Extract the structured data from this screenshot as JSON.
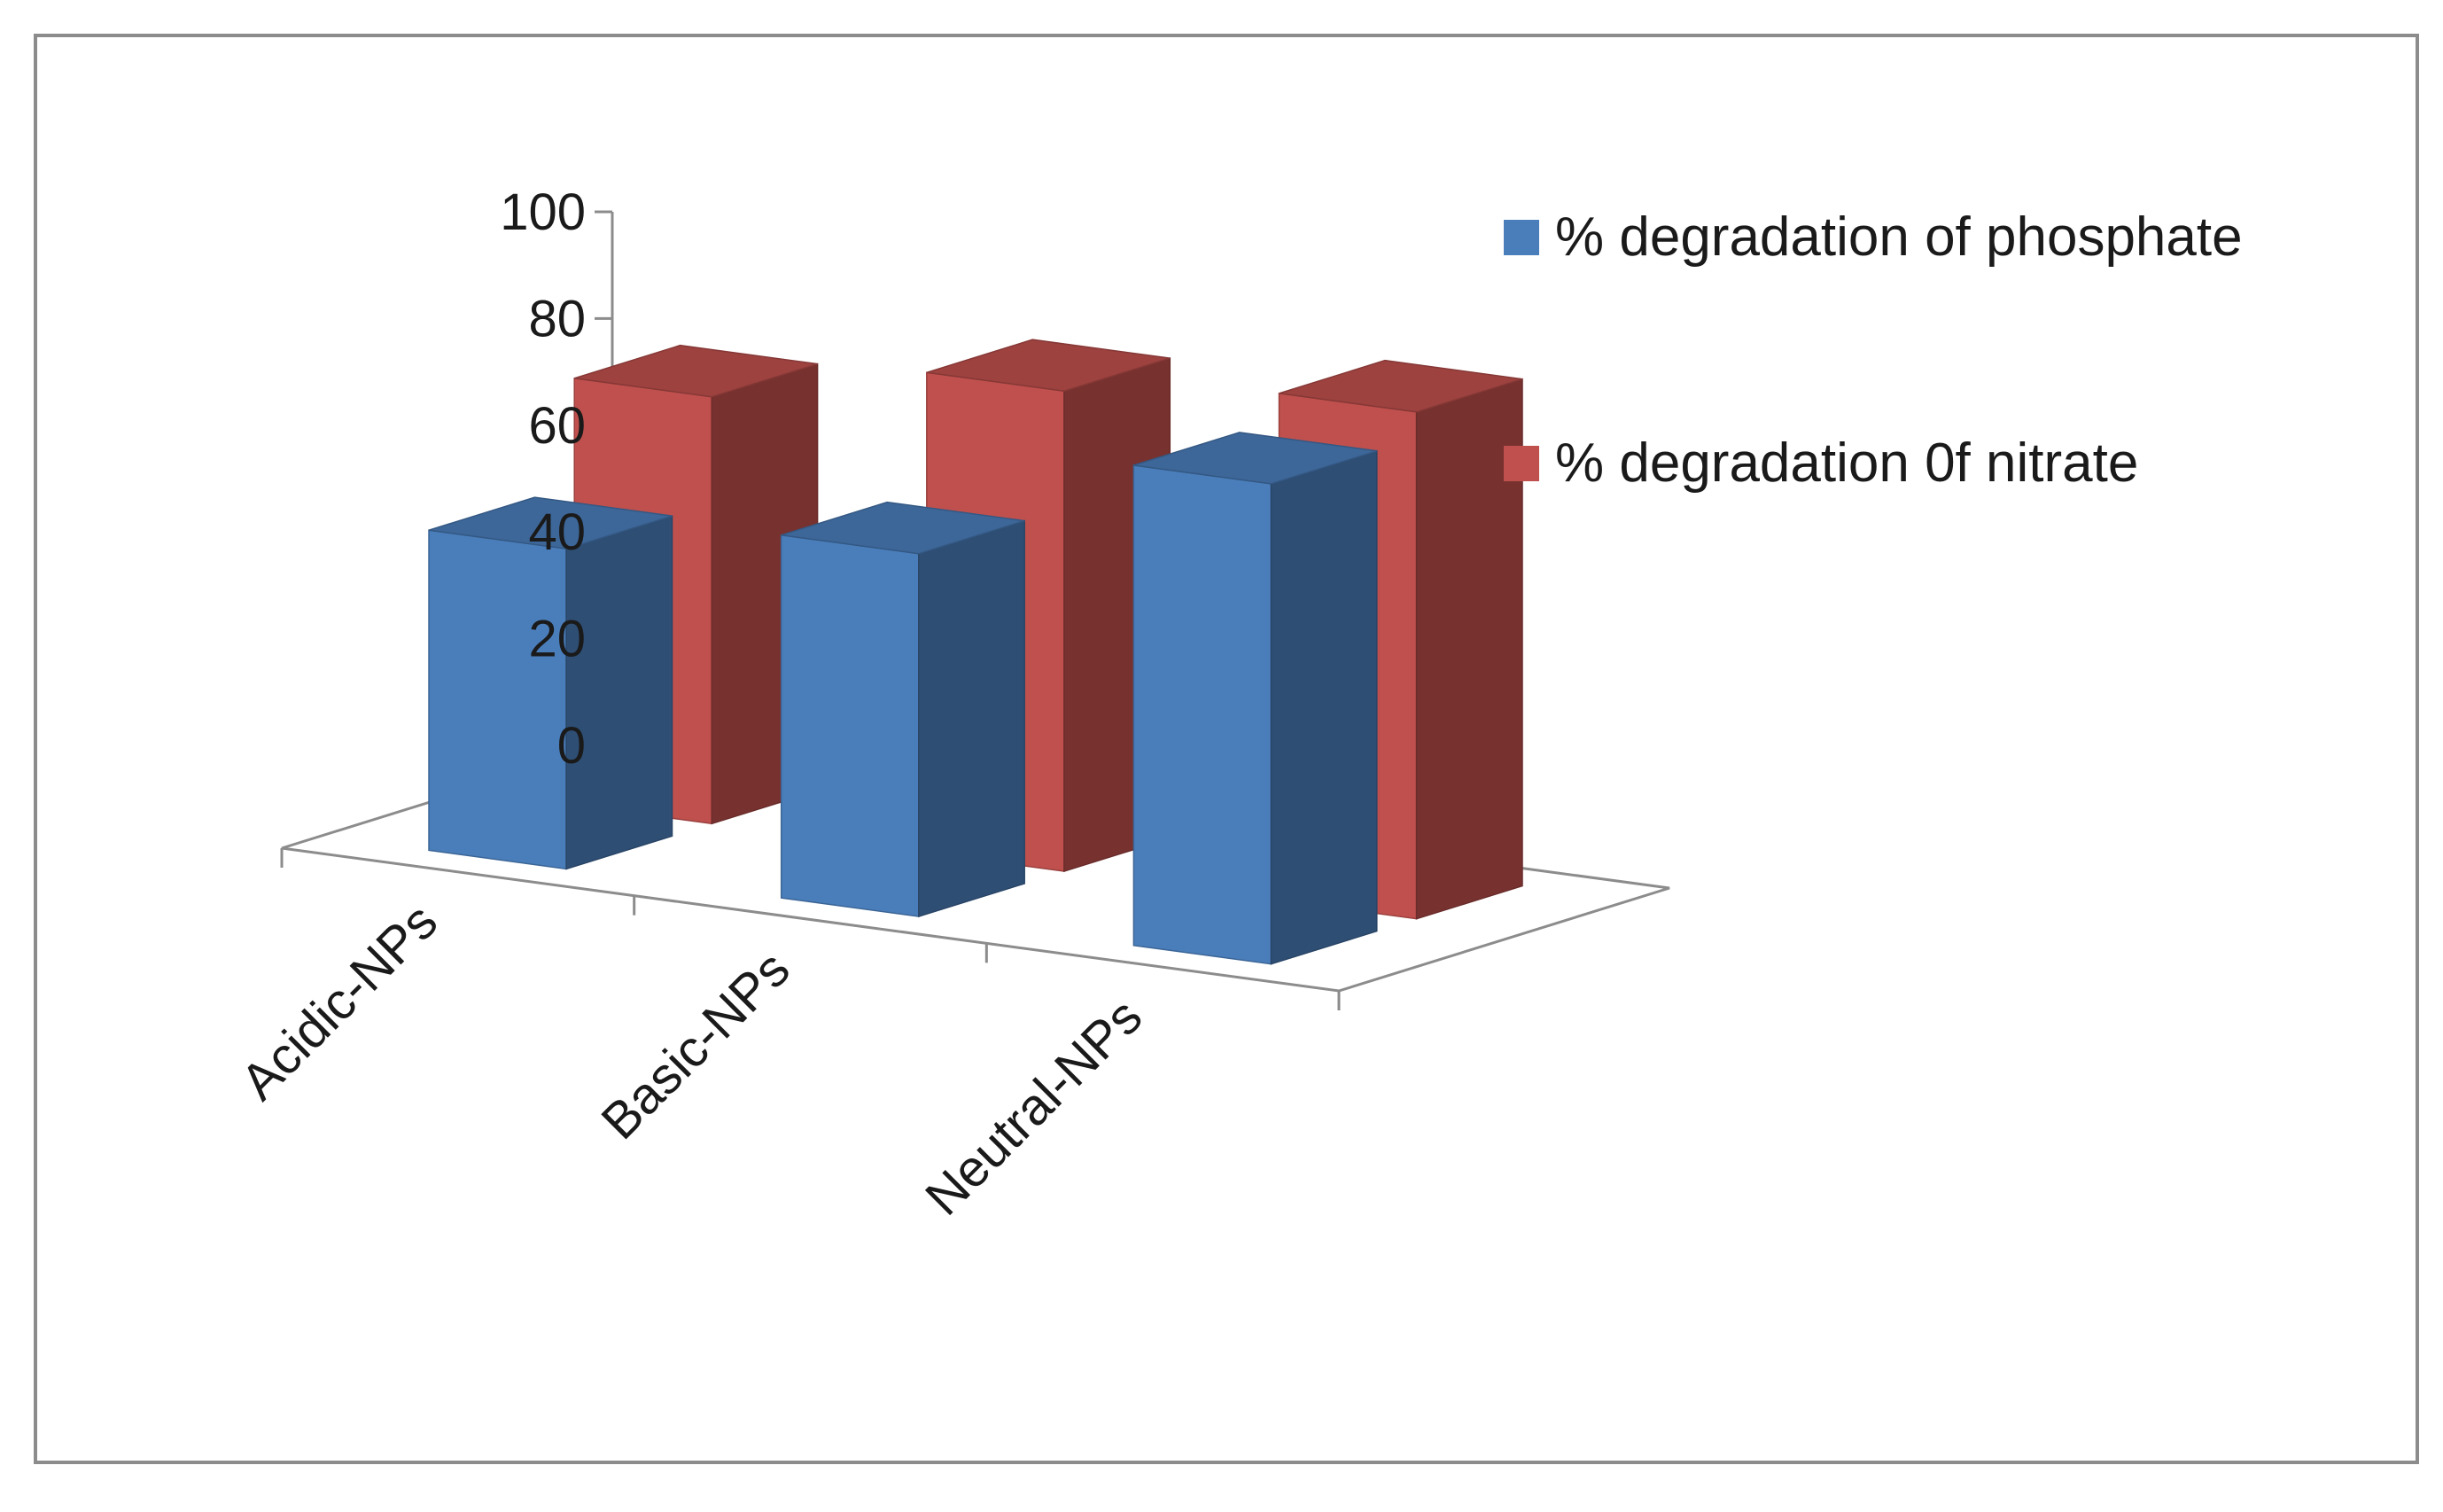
{
  "chart_data": {
    "type": "bar",
    "categories": [
      "Acidic-NPs",
      "Basic-NPs",
      "Neutral-NPs"
    ],
    "series": [
      {
        "name": "% degradation of phosphate",
        "values": [
          60,
          68,
          90
        ],
        "color": "#4a7ebb"
      },
      {
        "name": "% degradation 0f nitrate",
        "values": [
          80,
          90,
          95
        ],
        "color": "#c0504d"
      }
    ],
    "ylim": [
      0,
      100
    ],
    "y_ticks": [
      "0",
      "20",
      "40",
      "60",
      "80",
      "100"
    ],
    "title": "",
    "xlabel": "",
    "ylabel": "",
    "legend_position": "right",
    "grid": false,
    "style": "3d-clustered-column"
  }
}
